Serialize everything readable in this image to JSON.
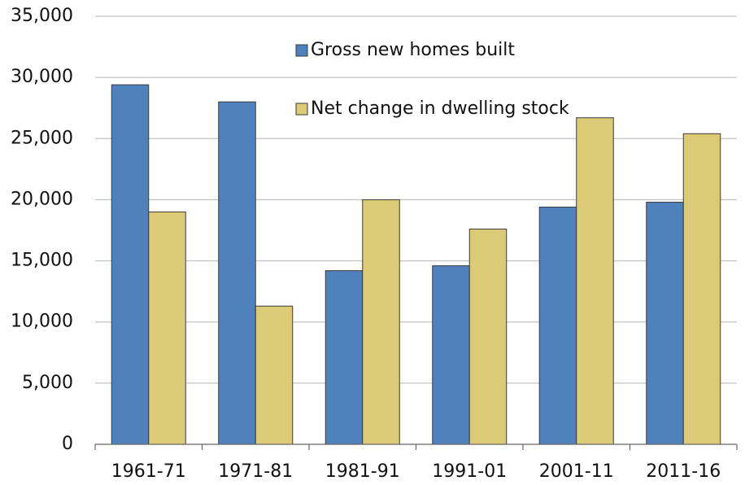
{
  "chart_data": {
    "type": "bar",
    "categories": [
      "1961-71",
      "1971-81",
      "1981-91",
      "1991-01",
      "2001-11",
      "2011-16"
    ],
    "series": [
      {
        "name": "Gross new homes built",
        "color": "#4f81bd",
        "values": [
          29400,
          28000,
          14200,
          14600,
          19400,
          19800
        ]
      },
      {
        "name": "Net change in dwelling stock",
        "color": "#dccb76",
        "values": [
          19000,
          11300,
          20000,
          17600,
          26700,
          25400
        ]
      }
    ],
    "ylim": [
      0,
      35000
    ],
    "yticks": [
      0,
      {
        "value": 5000,
        "label": "5,000"
      },
      {
        "value": 10000,
        "label": "10,000"
      },
      {
        "value": 15000,
        "label": "15,000"
      },
      {
        "value": 20000,
        "label": "20,000"
      },
      {
        "value": 25000,
        "label": "25,000"
      },
      {
        "value": 30000,
        "label": "30,000"
      },
      {
        "value": 35000,
        "label": "35,000"
      }
    ],
    "grid": true
  }
}
